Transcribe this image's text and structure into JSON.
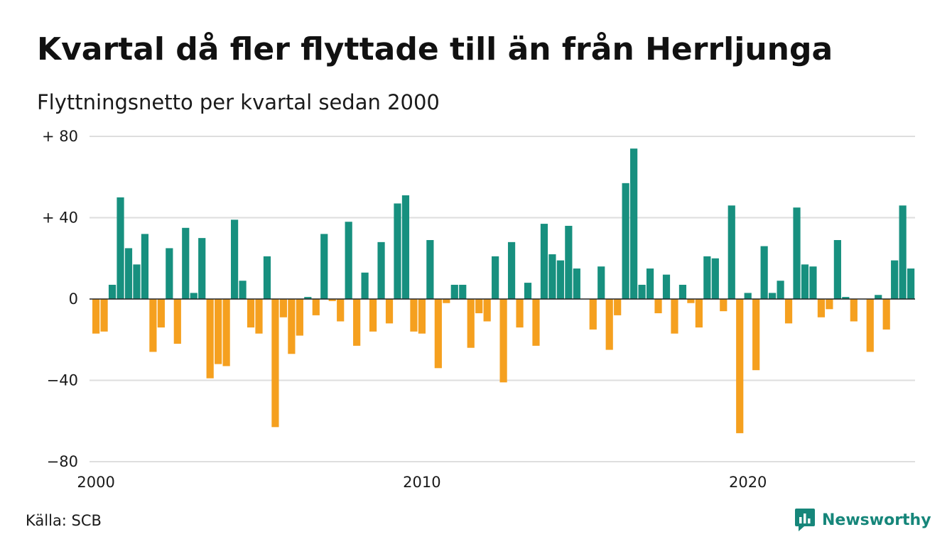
{
  "title": "Kvartal då fler flyttade till än från Herrljunga",
  "subtitle": "Flyttningsnetto per kvartal sedan 2000",
  "source": "Källa: SCB",
  "brand": {
    "name": "Newsworthy",
    "icon": "newsworthy-logo-icon"
  },
  "colors": {
    "positive": "#17907f",
    "negative": "#f5a01f",
    "grid": "#dedede",
    "zero_line": "#222222"
  },
  "chart_data": {
    "type": "bar",
    "title": "Kvartal då fler flyttade till än från Herrljunga",
    "subtitle": "Flyttningsnetto per kvartal sedan 2000",
    "xlabel": "",
    "ylabel": "",
    "ylim": [
      -80,
      80
    ],
    "grid": true,
    "y_ticks": [
      {
        "value": 80,
        "label": "+ 80"
      },
      {
        "value": 40,
        "label": "+ 40"
      },
      {
        "value": 0,
        "label": "0"
      },
      {
        "value": -40,
        "label": "−40"
      },
      {
        "value": -80,
        "label": "−80"
      }
    ],
    "x_ticks": [
      {
        "year": 2000,
        "label": "2000"
      },
      {
        "year": 2010,
        "label": "2010"
      },
      {
        "year": 2020,
        "label": "2020"
      }
    ],
    "start": "2000-Q1",
    "values": [
      -17,
      -16,
      7,
      50,
      25,
      17,
      32,
      -26,
      -14,
      25,
      -22,
      35,
      3,
      30,
      -39,
      -32,
      -33,
      39,
      9,
      -14,
      -17,
      21,
      -63,
      -9,
      -27,
      -18,
      1,
      -8,
      32,
      -1,
      -11,
      38,
      -23,
      13,
      -16,
      28,
      -12,
      47,
      51,
      -16,
      -17,
      29,
      -34,
      -2,
      7,
      7,
      -24,
      -7,
      -11,
      21,
      -41,
      28,
      -14,
      8,
      -23,
      37,
      22,
      19,
      36,
      15,
      0,
      -15,
      16,
      -25,
      -8,
      57,
      74,
      7,
      15,
      -7,
      12,
      -17,
      7,
      -2,
      -14,
      21,
      20,
      -6,
      46,
      -66,
      3,
      -35,
      26,
      3,
      9,
      -12,
      45,
      17,
      16,
      -9,
      -5,
      29,
      1,
      -11,
      0,
      -26,
      2,
      -15,
      19,
      46,
      15
    ]
  }
}
